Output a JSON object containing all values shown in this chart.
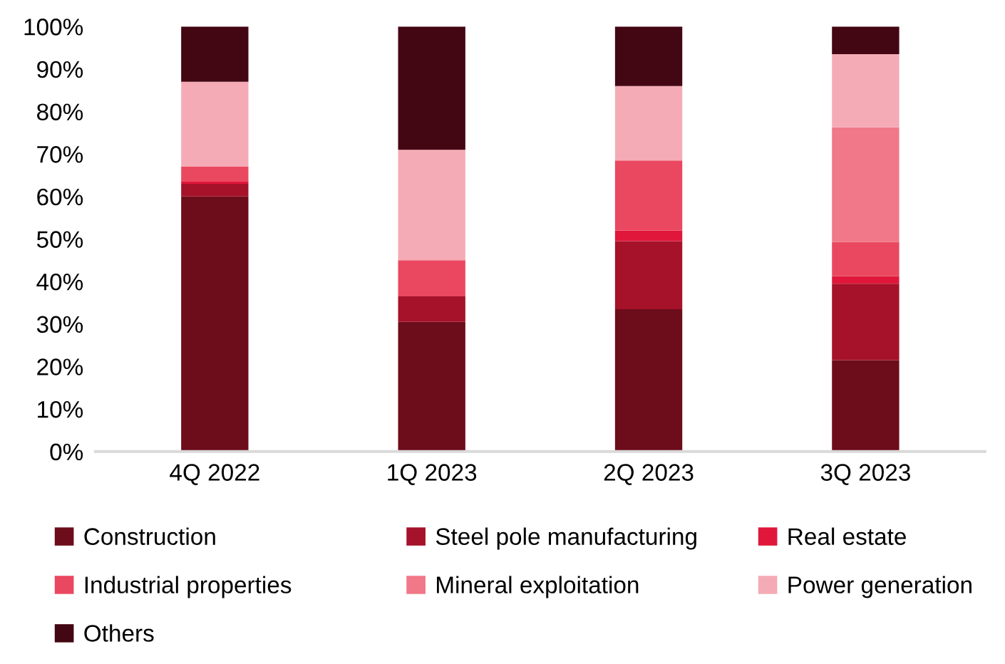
{
  "chart_data": {
    "type": "bar",
    "stacked": true,
    "categories": [
      "4Q 2022",
      "1Q 2023",
      "2Q 2023",
      "3Q 2023"
    ],
    "series": [
      {
        "name": "Construction",
        "color": "#6d0c1a",
        "values": [
          60,
          30.5,
          33.5,
          21.5
        ]
      },
      {
        "name": "Steel pole manufacturing",
        "color": "#a51229",
        "values": [
          3,
          6,
          16,
          18
        ]
      },
      {
        "name": "Real estate",
        "color": "#e0173a",
        "values": [
          0.5,
          0,
          2.5,
          1.8
        ]
      },
      {
        "name": "Industrial properties",
        "color": "#ea4860",
        "values": [
          3.5,
          8.5,
          16.5,
          8
        ]
      },
      {
        "name": "Mineral exploitation",
        "color": "#f07888",
        "values": [
          0,
          0,
          0,
          27
        ]
      },
      {
        "name": "Power generation",
        "color": "#f5abb5",
        "values": [
          20,
          26,
          17.5,
          17.2
        ]
      },
      {
        "name": "Others",
        "color": "#430613",
        "values": [
          13,
          29,
          14,
          6.5
        ]
      }
    ],
    "ylim": [
      0,
      100
    ],
    "yticks": [
      {
        "value": 0,
        "label": "0%"
      },
      {
        "value": 10,
        "label": "10%"
      },
      {
        "value": 20,
        "label": "20%"
      },
      {
        "value": 30,
        "label": "30%"
      },
      {
        "value": 40,
        "label": "40%"
      },
      {
        "value": 50,
        "label": "50%"
      },
      {
        "value": 60,
        "label": "60%"
      },
      {
        "value": 70,
        "label": "70%"
      },
      {
        "value": 80,
        "label": "80%"
      },
      {
        "value": 90,
        "label": "90%"
      },
      {
        "value": 100,
        "label": "100%"
      }
    ],
    "grid": false,
    "legend": "bottom"
  }
}
